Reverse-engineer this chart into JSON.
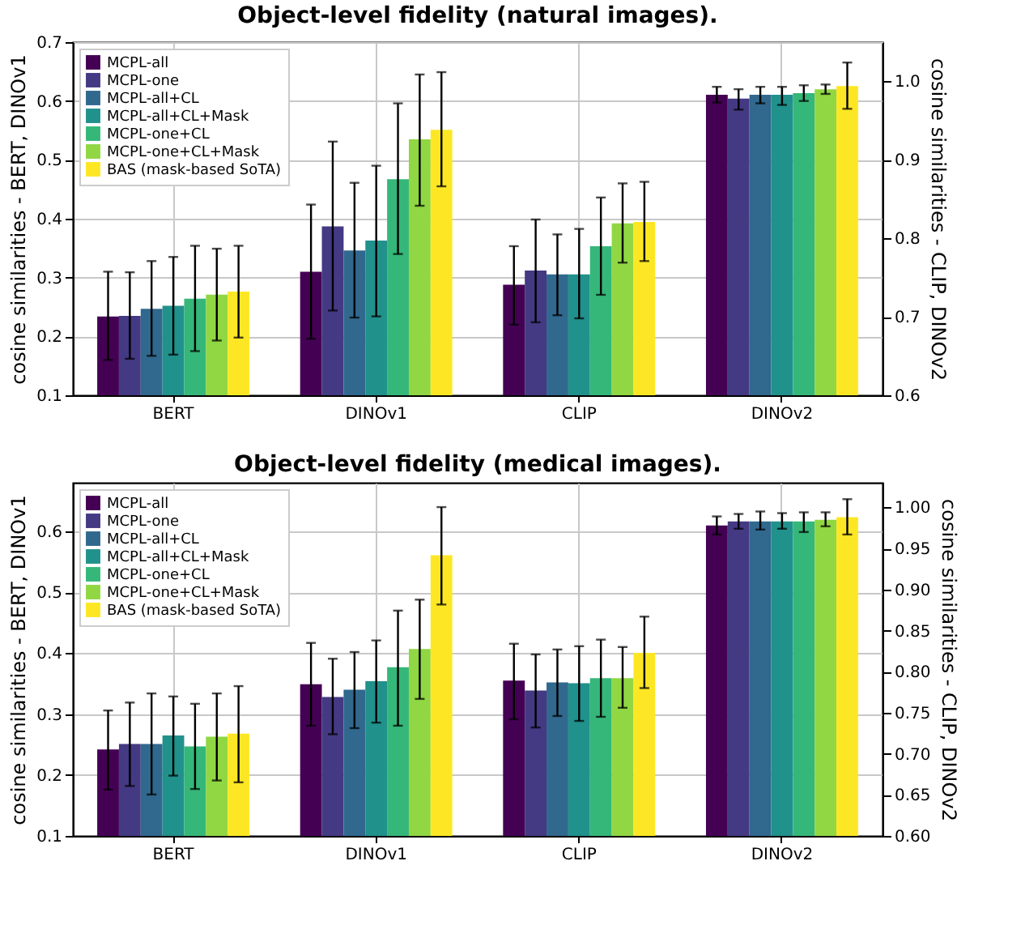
{
  "chart_data": [
    {
      "type": "bar",
      "title": "Object-level fidelity (natural images).",
      "ylabel": "cosine similarities - BERT, DINOv1",
      "y2label": "cosine similarities - CLIP, DINOv2",
      "categories": [
        "BERT",
        "DINOv1",
        "CLIP",
        "DINOv2"
      ],
      "ylim": [
        0.1,
        0.7
      ],
      "yticks": [
        0.1,
        0.2,
        0.3,
        0.4,
        0.5,
        0.6,
        0.7
      ],
      "y2lim": [
        0.6,
        1.05
      ],
      "y2ticks": [
        0.6,
        0.7,
        0.8,
        0.9,
        {
          "value": 1.0,
          "label": "1.0"
        }
      ],
      "grid": true,
      "legend": "top left",
      "series": [
        {
          "name": "MCPL-all",
          "color": "#440154",
          "values": [
            0.234,
            0.31,
            null,
            null
          ],
          "errors": [
            [
              0.16,
              0.31
            ],
            [
              0.196,
              0.424
            ],
            null,
            null
          ]
        },
        {
          "name": "MCPL-one",
          "color": "#443983",
          "values": [
            0.235,
            0.387,
            null,
            null
          ],
          "errors": [
            [
              0.162,
              0.309
            ],
            [
              0.244,
              0.531
            ],
            null,
            null
          ]
        },
        {
          "name": "MCPL-all+CL",
          "color": "#31688e",
          "values": [
            0.247,
            0.346,
            null,
            null
          ],
          "errors": [
            [
              0.167,
              0.328
            ],
            [
              0.232,
              0.461
            ],
            null,
            null
          ]
        },
        {
          "name": "MCPL-all+CL+Mask",
          "color": "#21918c",
          "values": [
            0.252,
            0.363,
            null,
            null
          ],
          "errors": [
            [
              0.169,
              0.335
            ],
            [
              0.234,
              0.49
            ],
            null,
            null
          ]
        },
        {
          "name": "MCPL-one+CL",
          "color": "#35b779",
          "values": [
            0.264,
            0.467,
            null,
            null
          ],
          "errors": [
            [
              0.175,
              0.354
            ],
            [
              0.34,
              0.596
            ],
            null,
            null
          ]
        },
        {
          "name": "MCPL-one+CL+Mask",
          "color": "#90d743",
          "values": [
            0.271,
            0.535,
            null,
            null
          ],
          "errors": [
            [
              0.193,
              0.349
            ],
            [
              0.422,
              0.645
            ],
            null,
            null
          ]
        },
        {
          "name": "BAS (mask-based SoTA)",
          "color": "#fde725",
          "values": [
            0.276,
            0.551,
            null,
            null
          ],
          "errors": [
            [
              0.198,
              0.354
            ],
            [
              0.455,
              0.649
            ],
            null,
            null
          ]
        },
        {
          "color": "#440154",
          "axis": "y2",
          "values": [
            null,
            null,
            0.741,
            0.983
          ],
          "errors": [
            null,
            null,
            [
              0.69,
              0.79
            ],
            [
              0.973,
              0.993
            ]
          ]
        },
        {
          "color": "#443983",
          "axis": "y2",
          "values": [
            null,
            null,
            0.759,
            0.978
          ],
          "errors": [
            null,
            null,
            [
              0.693,
              0.824
            ],
            [
              0.964,
              0.99
            ]
          ]
        },
        {
          "color": "#31688e",
          "axis": "y2",
          "values": [
            null,
            null,
            0.754,
            0.983
          ],
          "errors": [
            null,
            null,
            [
              0.702,
              0.805
            ],
            [
              0.972,
              0.993
            ]
          ]
        },
        {
          "color": "#21918c",
          "axis": "y2",
          "values": [
            null,
            null,
            0.754,
            0.983
          ],
          "errors": [
            null,
            null,
            [
              0.698,
              0.812
            ],
            [
              0.97,
              0.993
            ]
          ]
        },
        {
          "color": "#35b779",
          "axis": "y2",
          "values": [
            null,
            null,
            0.79,
            0.985
          ],
          "errors": [
            null,
            null,
            [
              0.728,
              0.852
            ],
            [
              0.975,
              0.995
            ]
          ]
        },
        {
          "color": "#90d743",
          "axis": "y2",
          "values": [
            null,
            null,
            0.819,
            0.99
          ],
          "errors": [
            null,
            null,
            [
              0.769,
              0.87
            ],
            [
              0.984,
              0.996
            ]
          ]
        },
        {
          "color": "#fde725",
          "axis": "y2",
          "values": [
            null,
            null,
            0.821,
            0.994
          ],
          "errors": [
            null,
            null,
            [
              0.771,
              0.872
            ],
            [
              0.965,
              1.024
            ]
          ]
        }
      ]
    },
    {
      "type": "bar",
      "title": "Object-level fidelity (medical images).",
      "ylabel": "cosine similarities - BERT, DINOv1",
      "y2label": "cosine similarities - CLIP, DINOv2",
      "categories": [
        "BERT",
        "DINOv1",
        "CLIP",
        "DINOv2"
      ],
      "ylim": [
        0.1,
        0.68
      ],
      "yticks": [
        0.1,
        0.2,
        0.3,
        0.4,
        0.5,
        0.6
      ],
      "y2lim": [
        0.6,
        1.03
      ],
      "y2ticks": [
        {
          "value": 0.6,
          "label": "0.60"
        },
        {
          "value": 0.65,
          "label": "0.65"
        },
        {
          "value": 0.7,
          "label": "0.70"
        },
        {
          "value": 0.75,
          "label": "0.75"
        },
        {
          "value": 0.8,
          "label": "0.80"
        },
        {
          "value": 0.85,
          "label": "0.85"
        },
        {
          "value": 0.9,
          "label": "0.90"
        },
        {
          "value": 0.95,
          "label": "0.95"
        },
        {
          "value": 1.0,
          "label": "1.00"
        }
      ],
      "grid": true,
      "legend": "top left",
      "series": [
        {
          "name": "MCPL-all",
          "color": "#440154",
          "values": [
            0.242,
            0.349,
            null,
            null
          ],
          "errors": [
            [
              0.176,
              0.306
            ],
            [
              0.281,
              0.417
            ],
            null,
            null
          ]
        },
        {
          "name": "MCPL-one",
          "color": "#443983",
          "values": [
            0.251,
            0.328,
            null,
            null
          ],
          "errors": [
            [
              0.182,
              0.319
            ],
            [
              0.267,
              0.391
            ],
            null,
            null
          ]
        },
        {
          "name": "MCPL-all+CL",
          "color": "#31688e",
          "values": [
            0.251,
            0.34,
            null,
            null
          ],
          "errors": [
            [
              0.168,
              0.334
            ],
            [
              0.277,
              0.402
            ],
            null,
            null
          ]
        },
        {
          "name": "MCPL-all+CL+Mask",
          "color": "#21918c",
          "values": [
            0.265,
            0.354,
            null,
            null
          ],
          "errors": [
            [
              0.199,
              0.329
            ],
            [
              0.286,
              0.421
            ],
            null,
            null
          ]
        },
        {
          "name": "MCPL-one+CL",
          "color": "#35b779",
          "values": [
            0.247,
            0.377,
            null,
            null
          ],
          "errors": [
            [
              0.177,
              0.317
            ],
            [
              0.281,
              0.47
            ],
            null,
            null
          ]
        },
        {
          "name": "MCPL-one+CL+Mask",
          "color": "#90d743",
          "values": [
            0.263,
            0.407,
            null,
            null
          ],
          "errors": [
            [
              0.191,
              0.334
            ],
            [
              0.325,
              0.488
            ],
            null,
            null
          ]
        },
        {
          "name": "BAS (mask-based SoTA)",
          "color": "#fde725",
          "values": [
            0.268,
            0.561,
            null,
            null
          ],
          "errors": [
            [
              0.188,
              0.346
            ],
            [
              0.48,
              0.64
            ],
            null,
            null
          ]
        },
        {
          "color": "#440154",
          "axis": "y2",
          "values": [
            null,
            null,
            0.789,
            0.978
          ],
          "errors": [
            null,
            null,
            [
              0.742,
              0.834
            ],
            [
              0.967,
              0.989
            ]
          ]
        },
        {
          "color": "#443983",
          "axis": "y2",
          "values": [
            null,
            null,
            0.777,
            0.983
          ],
          "errors": [
            null,
            null,
            [
              0.732,
              0.821
            ],
            [
              0.974,
              0.992
            ]
          ]
        },
        {
          "color": "#31688e",
          "axis": "y2",
          "values": [
            null,
            null,
            0.787,
            0.983
          ],
          "errors": [
            null,
            null,
            [
              0.746,
              0.827
            ],
            [
              0.973,
              0.995
            ]
          ]
        },
        {
          "color": "#21918c",
          "axis": "y2",
          "values": [
            null,
            null,
            0.786,
            0.983
          ],
          "errors": [
            null,
            null,
            [
              0.74,
              0.831
            ],
            [
              0.974,
              0.993
            ]
          ]
        },
        {
          "color": "#35b779",
          "axis": "y2",
          "values": [
            null,
            null,
            0.792,
            0.983
          ],
          "errors": [
            null,
            null,
            [
              0.745,
              0.839
            ],
            [
              0.97,
              0.994
            ]
          ]
        },
        {
          "color": "#90d743",
          "axis": "y2",
          "values": [
            null,
            null,
            0.792,
            0.985
          ],
          "errors": [
            null,
            null,
            [
              0.756,
              0.83
            ],
            [
              0.977,
              0.994
            ]
          ]
        },
        {
          "color": "#fde725",
          "axis": "y2",
          "values": [
            null,
            null,
            0.823,
            0.988
          ],
          "errors": [
            null,
            null,
            [
              0.78,
              0.867
            ],
            [
              0.967,
              1.01
            ]
          ]
        }
      ]
    }
  ]
}
